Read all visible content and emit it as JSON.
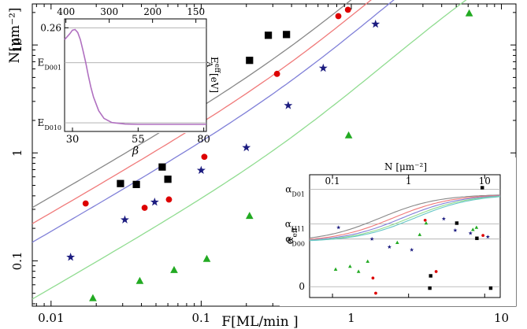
{
  "chart_data": [
    {
      "type": "scatter",
      "xlabel": "F[ML/min ]",
      "ylabel": "N[μm⁻²]",
      "xscale": "log",
      "yscale": "log",
      "xlim": [
        0.0075,
        12.5
      ],
      "ylim": [
        0.038,
        24
      ],
      "x_ticks": [
        "0.01",
        "0.1",
        "1",
        "10"
      ],
      "y_ticks": [
        "0.1",
        "1",
        "10"
      ],
      "series": [
        {
          "color": "#000000",
          "marker": "square",
          "x": [
            0.029,
            0.037,
            0.055,
            0.06,
            0.21,
            0.28,
            0.37
          ],
          "y": [
            0.52,
            0.51,
            0.74,
            0.57,
            7.2,
            12.3,
            12.5
          ]
        },
        {
          "color": "#dd0000",
          "marker": "circle",
          "x": [
            0.017,
            0.042,
            0.061,
            0.105,
            0.32,
            0.82,
            0.95
          ],
          "y": [
            0.34,
            0.31,
            0.37,
            0.92,
            5.4,
            18.5,
            21.2
          ]
        },
        {
          "color": "#1c1c80",
          "marker": "star",
          "x": [
            0.0135,
            0.031,
            0.049,
            0.1,
            0.2,
            0.38,
            0.65,
            1.45
          ],
          "y": [
            0.108,
            0.24,
            0.35,
            0.69,
            1.12,
            2.75,
            6.1,
            15.6
          ]
        },
        {
          "color": "#22aa22",
          "marker": "triangle",
          "x": [
            0.019,
            0.039,
            0.066,
            0.109,
            0.21,
            0.56,
            0.96,
            6.1
          ],
          "y": [
            0.045,
            0.065,
            0.082,
            0.104,
            0.26,
            0.74,
            1.45,
            19.6
          ]
        }
      ],
      "curves": [
        {
          "color": "#888888",
          "k": 1.55
        },
        {
          "color": "#f07a7a",
          "k": 1.1
        },
        {
          "color": "#8080d8",
          "k": 0.74
        },
        {
          "color": "#90dc90",
          "k": 0.22
        }
      ]
    },
    {
      "type": "line",
      "xlabel": "β",
      "ylabel": "E_A^eff[eV]",
      "xlim": [
        27,
        81
      ],
      "x_ticks": [
        "30",
        "55",
        "80"
      ],
      "top_ticks": [
        "400",
        "300",
        "200",
        "150"
      ],
      "y_ticks": [
        "0.26",
        "E_D001",
        "E_D010"
      ],
      "color": "#b070c0",
      "x": [
        27,
        29,
        30,
        31,
        32,
        33,
        34,
        35,
        36,
        37,
        38,
        40,
        42,
        45,
        50,
        55,
        60,
        70,
        81
      ],
      "y": [
        0.24,
        0.25,
        0.256,
        0.257,
        0.252,
        0.24,
        0.222,
        0.202,
        0.18,
        0.16,
        0.143,
        0.12,
        0.107,
        0.1,
        0.0975,
        0.097,
        0.097,
        0.097,
        0.097
      ]
    },
    {
      "type": "scatter",
      "xlabel_top": "N [μm⁻²]",
      "ylabel": "α_eff",
      "xscale": "log",
      "x_ticks": [
        "0.1",
        "1",
        "10"
      ],
      "y_ticks": [
        "α_D01",
        "α_H11",
        "α_D00",
        "0"
      ],
      "series": [
        {
          "color": "#000000",
          "marker": "square",
          "x": [
            1.9,
            1.95,
            4.3,
            7.9,
            9.3,
            12.0
          ],
          "y": [
            -0.02,
            0.15,
            0.88,
            0.67,
            1.37,
            -0.02
          ]
        },
        {
          "color": "#dd0000",
          "marker": "circle",
          "x": [
            0.34,
            0.37,
            1.65,
            2.3,
            9.5
          ],
          "y": [
            0.12,
            -0.09,
            0.92,
            0.21,
            0.71
          ]
        },
        {
          "color": "#1c1c80",
          "marker": "star",
          "x": [
            0.12,
            0.33,
            0.56,
            1.1,
            2.9,
            4.1,
            6.5,
            11.0
          ],
          "y": [
            0.82,
            0.66,
            0.55,
            0.51,
            0.94,
            0.78,
            0.74,
            0.69
          ]
        },
        {
          "color": "#22aa22",
          "marker": "triangle",
          "x": [
            0.11,
            0.17,
            0.22,
            0.29,
            0.71,
            1.4,
            1.7,
            7.0,
            7.8
          ],
          "y": [
            0.24,
            0.28,
            0.21,
            0.35,
            0.61,
            0.72,
            0.88,
            0.79,
            0.82
          ]
        }
      ],
      "curves": [
        "#888888",
        "#f07a7a",
        "#8080d8",
        "#90dc90",
        "#66c6c6"
      ]
    }
  ]
}
